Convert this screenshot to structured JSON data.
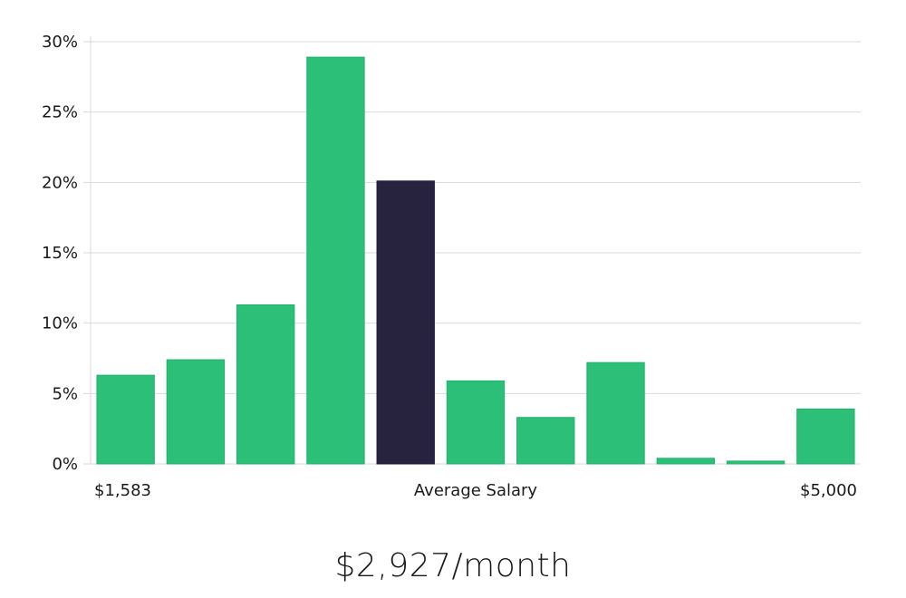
{
  "chart_data": {
    "type": "bar",
    "values": [
      6.3,
      7.4,
      11.3,
      28.9,
      20.1,
      5.9,
      3.3,
      7.2,
      0.4,
      0.2,
      3.9
    ],
    "highlight_index": 4,
    "ylim": [
      0,
      30
    ],
    "y_ticks": [
      0,
      5,
      10,
      15,
      20,
      25,
      30
    ],
    "y_tick_labels": [
      "0%",
      "5%",
      "10%",
      "15%",
      "20%",
      "25%",
      "30%"
    ],
    "x_labels": {
      "min": "$1,583",
      "center": "Average Salary",
      "max": "$5,000"
    },
    "grid": true
  },
  "colors": {
    "bar": "#2bbf77",
    "highlight": "#27233f",
    "grid": "#d9d9d9",
    "text": "#1a1a1a"
  },
  "summary": {
    "value": "$2,927/month"
  }
}
